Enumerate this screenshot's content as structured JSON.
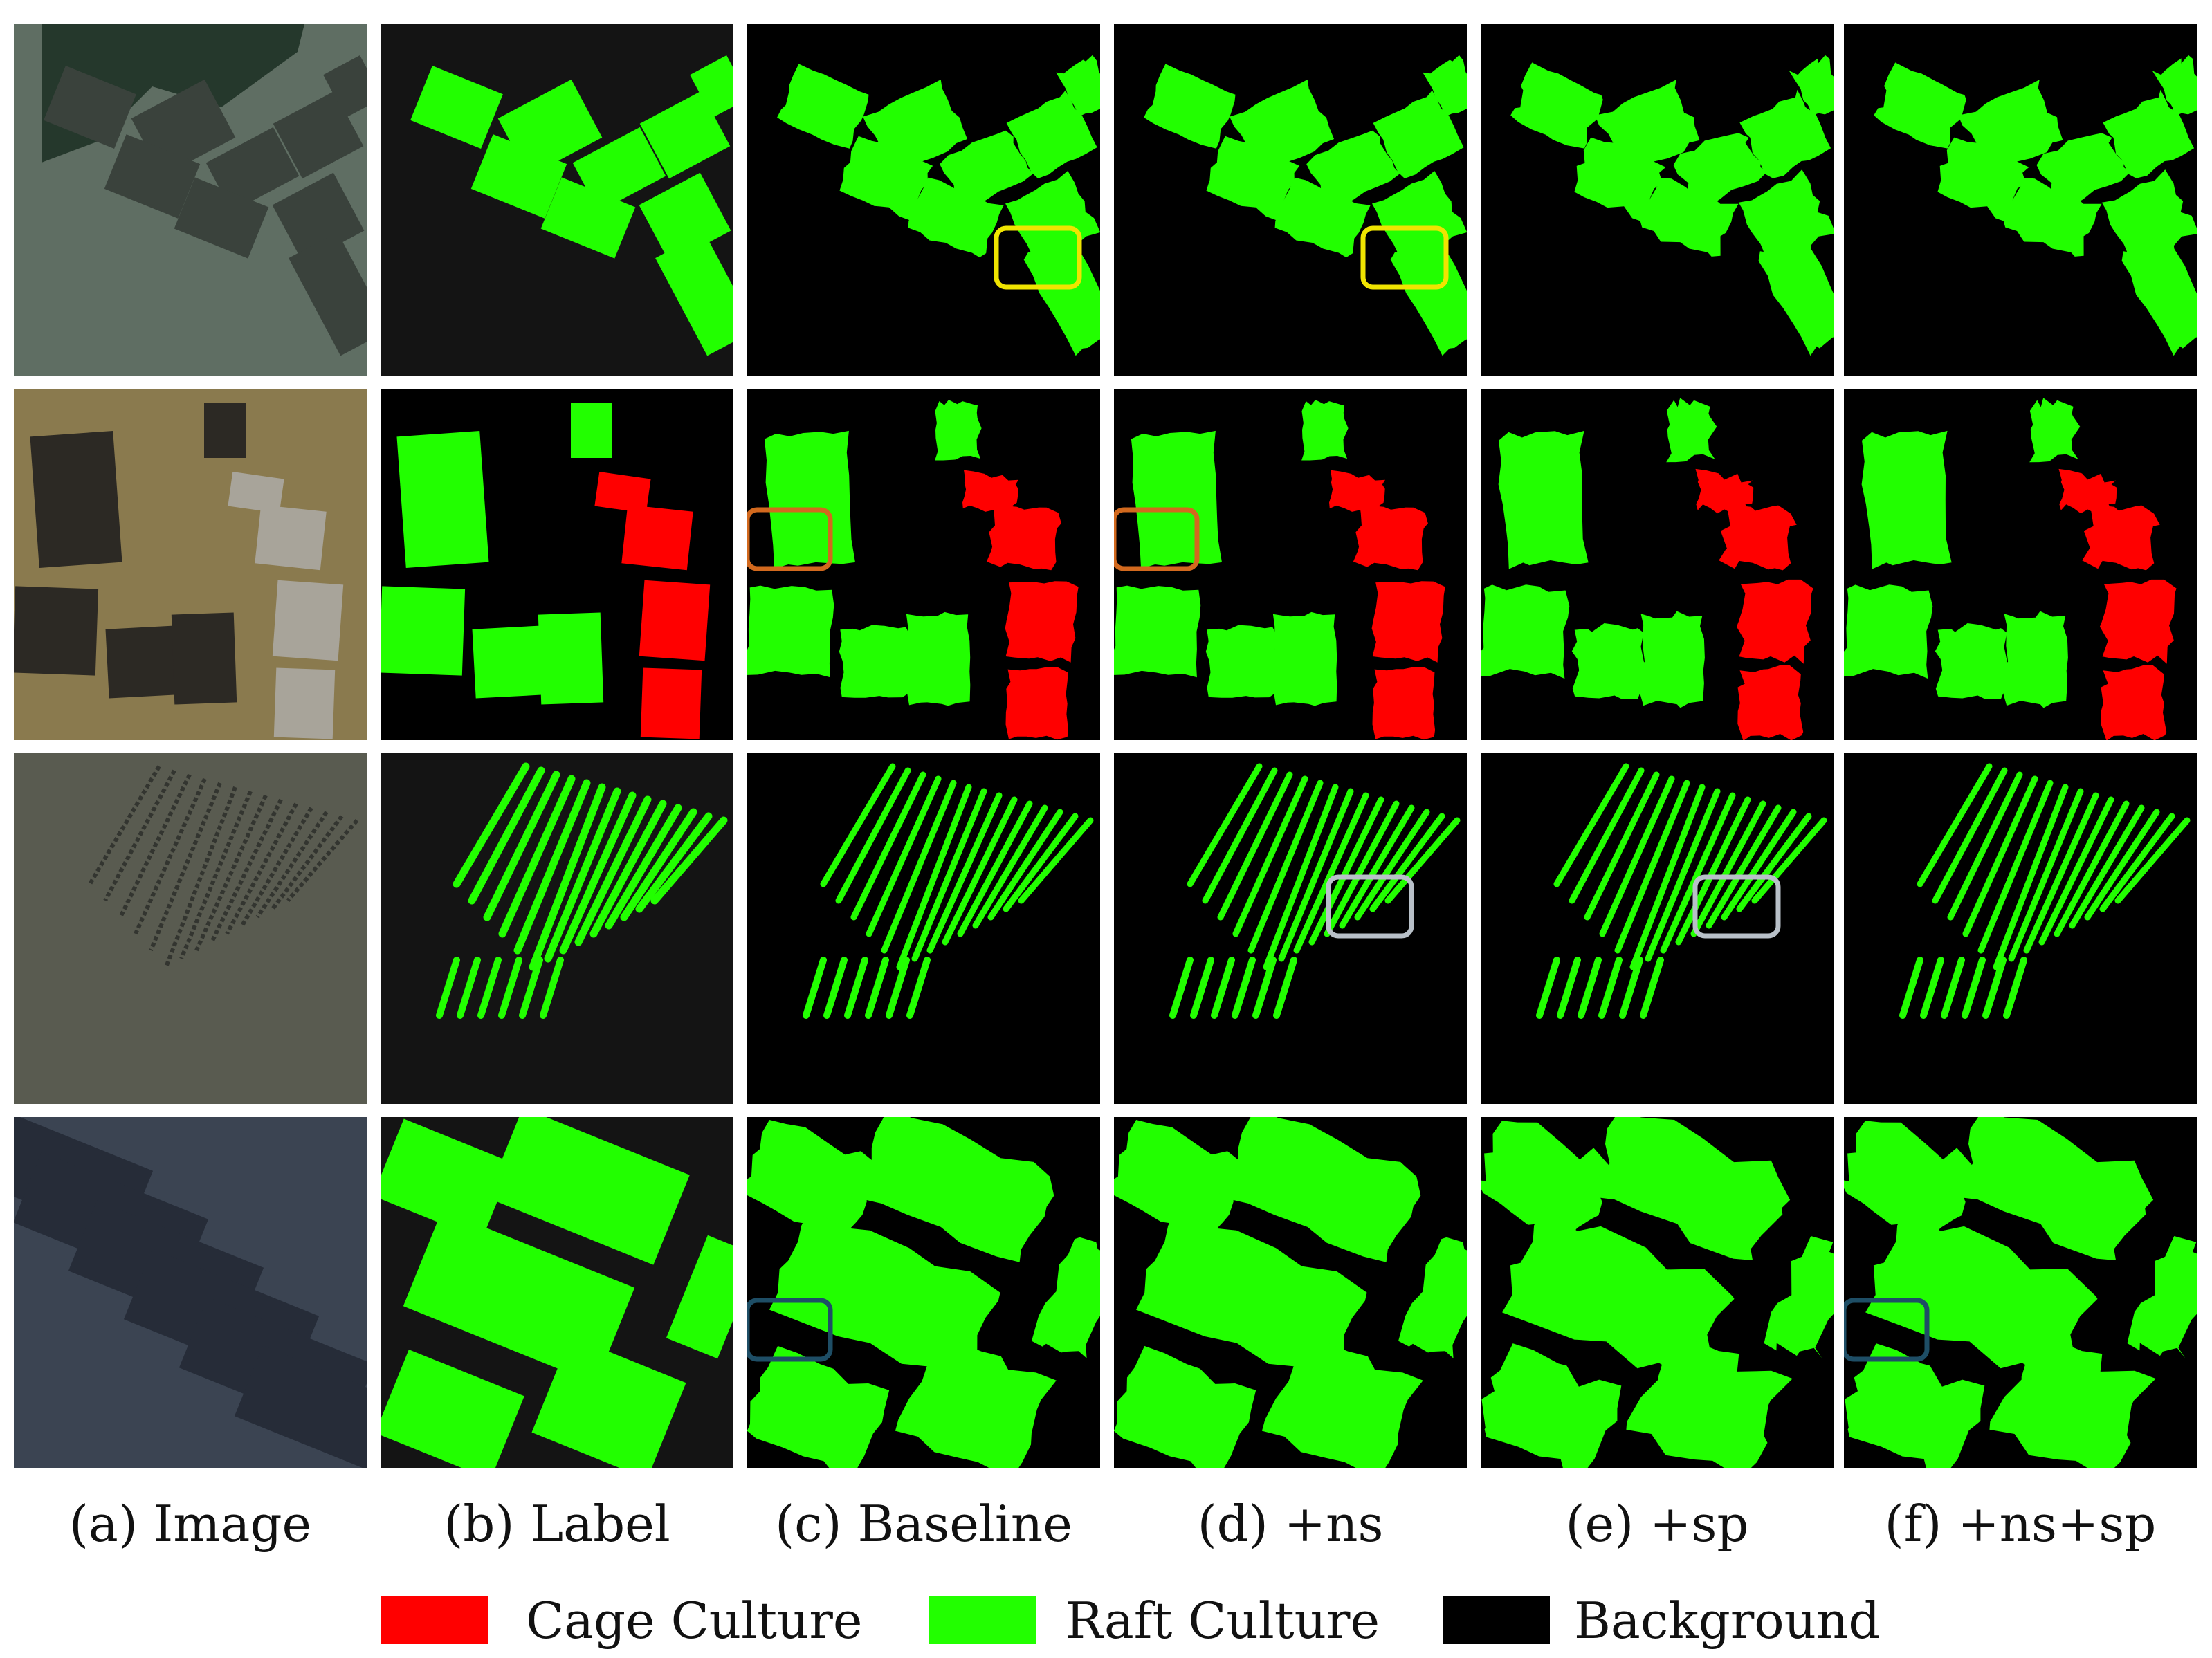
{
  "columns": [
    {
      "caption": "(a) Image"
    },
    {
      "caption": "(b) Label"
    },
    {
      "caption": "(c) Baseline"
    },
    {
      "caption": "(d) +ns"
    },
    {
      "caption": "(e) +sp"
    },
    {
      "caption": "(f) +ns+sp"
    }
  ],
  "legend": [
    {
      "label": "Cage Culture",
      "color": "#ff0000"
    },
    {
      "label": "Raft Culture",
      "color": "#22ff00"
    },
    {
      "label": "Background",
      "color": "#000000"
    }
  ],
  "colors": {
    "raft": "#22ff00",
    "cage": "#ff0000",
    "background": "#000000",
    "highlight_yellow": "#f0e400",
    "highlight_orange": "#d2691e",
    "highlight_gray": "#b8c0c8",
    "highlight_teal": "#1e4e66"
  }
}
